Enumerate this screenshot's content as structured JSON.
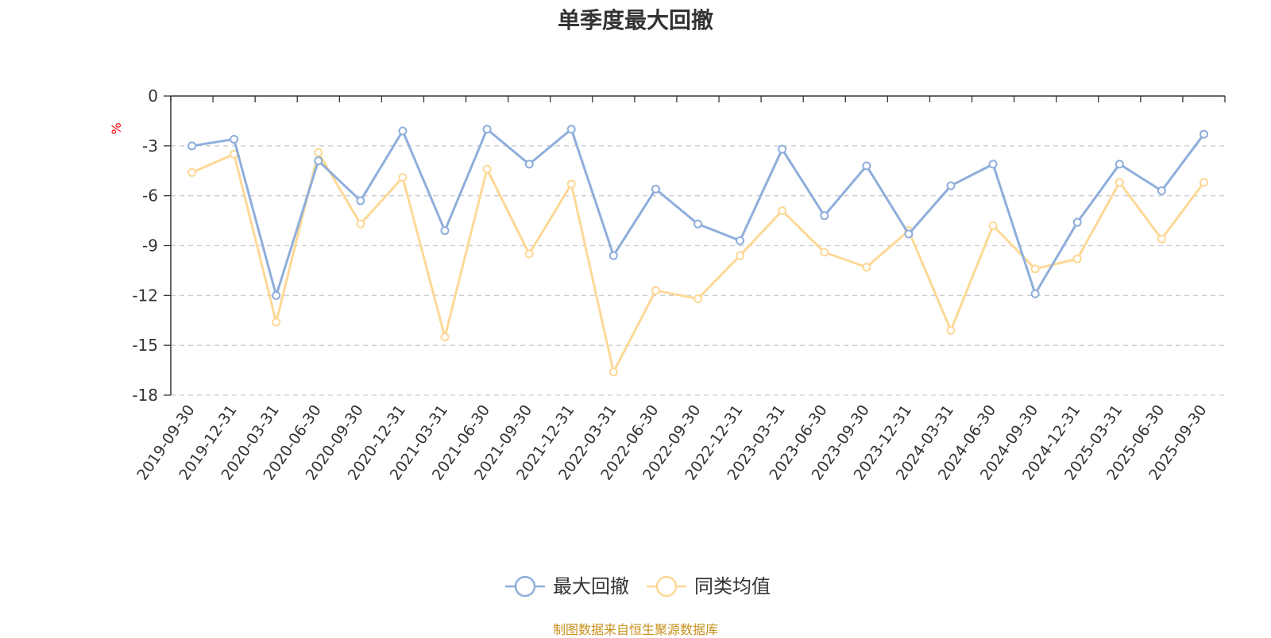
{
  "chart_data": {
    "type": "line",
    "title": "单季度最大回撤",
    "ylabel": "%",
    "ylim": [
      -18,
      0
    ],
    "yticks": [
      0,
      -3,
      -6,
      -9,
      -12,
      -15,
      -18
    ],
    "grid": true,
    "legend_position": "bottom-center",
    "categories": [
      "2019-09-30",
      "2019-12-31",
      "2020-03-31",
      "2020-06-30",
      "2020-09-30",
      "2020-12-31",
      "2021-03-31",
      "2021-06-30",
      "2021-09-30",
      "2021-12-31",
      "2022-03-31",
      "2022-06-30",
      "2022-09-30",
      "2022-12-31",
      "2023-03-31",
      "2023-06-30",
      "2023-09-30",
      "2023-12-31",
      "2024-03-31",
      "2024-06-30",
      "2024-09-30",
      "2024-12-31",
      "2025-03-31",
      "2025-06-30",
      "2025-09-30"
    ],
    "series": [
      {
        "name": "最大回撤",
        "color": "#8eaedb",
        "values": [
          -3.0,
          -2.6,
          -12.0,
          -3.9,
          -6.3,
          -2.1,
          -8.1,
          -2.0,
          -4.1,
          -2.0,
          -9.6,
          -5.6,
          -7.7,
          -8.7,
          -3.2,
          -7.2,
          -4.2,
          -8.3,
          -5.4,
          -4.1,
          -11.9,
          -7.6,
          -4.1,
          -5.7,
          -2.3
        ]
      },
      {
        "name": "同类均值",
        "color": "#fdd896",
        "values": [
          -4.6,
          -3.5,
          -13.6,
          -3.4,
          -7.7,
          -4.9,
          -14.5,
          -4.4,
          -9.5,
          -5.3,
          -16.6,
          -11.7,
          -12.2,
          -9.6,
          -6.9,
          -9.4,
          -10.3,
          -8.1,
          -14.1,
          -7.8,
          -10.4,
          -9.8,
          -5.2,
          -8.6,
          -5.2
        ]
      }
    ]
  },
  "source_note": "制图数据来自恒生聚源数据库",
  "colors": {
    "axis": "#333333",
    "grid": "#cccccc",
    "ylabel": "#ff0000",
    "source": "#c8901e",
    "title": "#333333"
  }
}
